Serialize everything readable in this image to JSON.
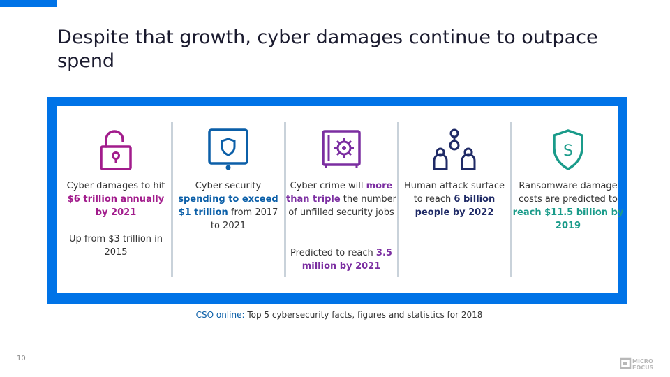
{
  "title": "Despite that growth, cyber damages continue to outpace spend",
  "colors": {
    "accent": "#0073e7",
    "magenta": "#a21c8c",
    "blue": "#0b5fa8",
    "purple": "#7b2ea1",
    "navy": "#1f2a66",
    "teal": "#1a9b8a"
  },
  "stats": [
    {
      "icon": "padlock-icon",
      "pre": "Cyber damages to hit ",
      "hl": "$6 trillion annually by 2021",
      "post": "",
      "extra": "Up from $3 trillion in 2015"
    },
    {
      "icon": "tablet-shield-icon",
      "pre": "Cyber security ",
      "hl": "spending to exceed $1 trillion",
      "post": " from 2017 to 2021"
    },
    {
      "icon": "safe-icon",
      "pre": "Cyber crime will ",
      "hl": "more than triple",
      "post": " the number of unfilled security jobs",
      "extra_pre": "Predicted to reach ",
      "extra_hl": "3.5 million by 2021"
    },
    {
      "icon": "people-icon",
      "pre": "Human attack surface to reach ",
      "hl": "6 billion people by 2022",
      "post": ""
    },
    {
      "icon": "ransom-shield-icon",
      "pre": "Ransomware damage costs are predicted to ",
      "hl": "reach $11.5 billion by 2019",
      "post": "",
      "icon_letter": "S"
    }
  ],
  "source": {
    "label": "CSO online:",
    "text": " Top 5 cybersecurity facts, figures and statistics for 2018"
  },
  "page_number": "10",
  "logo": {
    "line1": "MICRO",
    "line2": "FOCUS"
  }
}
